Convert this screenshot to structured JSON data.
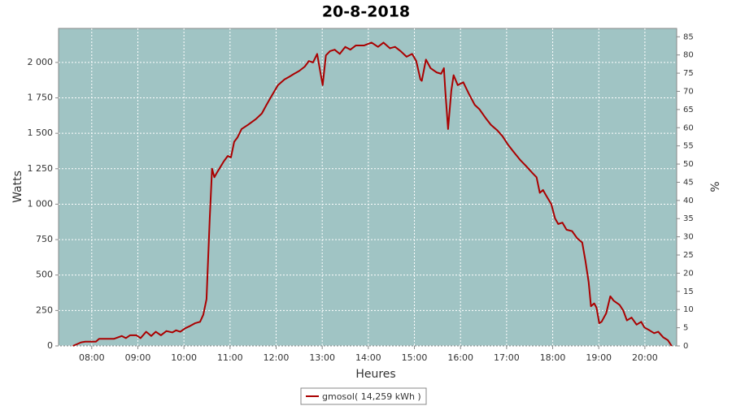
{
  "chart_data": {
    "type": "line",
    "title": "20-8-2018",
    "x_label": "Heures",
    "y_label": "Watts",
    "y2_label": "%",
    "grid": true,
    "legend": "bottom",
    "background": "#a0c4c4",
    "xlim": [
      7.28,
      20.69
    ],
    "xticks": [
      {
        "value": 8,
        "label": "08:00"
      },
      {
        "value": 9,
        "label": "09:00"
      },
      {
        "value": 10,
        "label": "10:00"
      },
      {
        "value": 11,
        "label": "11:00"
      },
      {
        "value": 12,
        "label": "12:00"
      },
      {
        "value": 13,
        "label": "13:00"
      },
      {
        "value": 14,
        "label": "14:00"
      },
      {
        "value": 15,
        "label": "15:00"
      },
      {
        "value": 16,
        "label": "16:00"
      },
      {
        "value": 17,
        "label": "17:00"
      },
      {
        "value": 18,
        "label": "18:00"
      },
      {
        "value": 19,
        "label": "19:00"
      },
      {
        "value": 20,
        "label": "20:00"
      }
    ],
    "ylim": [
      0,
      2240
    ],
    "yticks": [
      0,
      250,
      500,
      750,
      {
        "value": 1000,
        "label": "1 000"
      },
      {
        "value": 1250,
        "label": "1 250"
      },
      {
        "value": 1500,
        "label": "1 500"
      },
      {
        "value": 1750,
        "label": "1 750"
      },
      {
        "value": 2000,
        "label": "2 000"
      }
    ],
    "y2lim": [
      0,
      87.3
    ],
    "y2ticks": [
      0,
      5,
      10,
      15,
      20,
      25,
      30,
      35,
      40,
      45,
      50,
      55,
      60,
      65,
      70,
      75,
      80,
      85
    ],
    "x": [
      7.59,
      7.77,
      7.86,
      8.09,
      8.16,
      8.48,
      8.65,
      8.74,
      8.83,
      8.97,
      9.06,
      9.18,
      9.29,
      9.39,
      9.5,
      9.62,
      9.75,
      9.83,
      9.92,
      10.03,
      10.13,
      10.24,
      10.35,
      10.42,
      10.49,
      10.56,
      10.61,
      10.66,
      10.73,
      10.86,
      10.95,
      11.02,
      11.09,
      11.16,
      11.25,
      11.39,
      11.56,
      11.69,
      11.79,
      11.86,
      11.95,
      12.04,
      12.18,
      12.29,
      12.39,
      12.5,
      12.62,
      12.71,
      12.8,
      12.89,
      12.96,
      13.01,
      13.08,
      13.17,
      13.27,
      13.38,
      13.5,
      13.61,
      13.73,
      13.91,
      14.07,
      14.21,
      14.33,
      14.47,
      14.58,
      14.7,
      14.83,
      14.95,
      15.04,
      15.13,
      15.16,
      15.25,
      15.35,
      15.48,
      15.58,
      15.64,
      15.67,
      15.73,
      15.8,
      15.85,
      15.94,
      16.06,
      16.18,
      16.31,
      16.41,
      16.54,
      16.66,
      16.8,
      16.91,
      17.03,
      17.15,
      17.3,
      17.42,
      17.56,
      17.65,
      17.72,
      17.79,
      17.86,
      17.97,
      18.05,
      18.12,
      18.21,
      18.3,
      18.42,
      18.53,
      18.64,
      18.71,
      18.78,
      18.83,
      18.9,
      18.95,
      19.01,
      19.06,
      19.16,
      19.25,
      19.32,
      19.45,
      19.53,
      19.61,
      19.71,
      19.82,
      19.92,
      19.99,
      20.1,
      20.2,
      20.29,
      20.4,
      20.5,
      20.58
    ],
    "series": [
      {
        "name": "gmosol( 14,259 kWh )",
        "color": "#aa0000",
        "values": [
          0,
          25,
          30,
          30,
          50,
          50,
          70,
          55,
          75,
          75,
          55,
          100,
          70,
          100,
          75,
          105,
          95,
          110,
          100,
          125,
          140,
          160,
          170,
          220,
          330,
          900,
          1250,
          1190,
          1230,
          1300,
          1340,
          1330,
          1440,
          1470,
          1530,
          1560,
          1600,
          1640,
          1700,
          1740,
          1790,
          1840,
          1880,
          1900,
          1920,
          1940,
          1970,
          2010,
          2000,
          2060,
          1930,
          1840,
          2050,
          2080,
          2090,
          2060,
          2110,
          2090,
          2120,
          2120,
          2140,
          2110,
          2140,
          2100,
          2110,
          2080,
          2040,
          2060,
          2010,
          1880,
          1870,
          2020,
          1960,
          1930,
          1920,
          1960,
          1800,
          1530,
          1800,
          1910,
          1840,
          1860,
          1780,
          1700,
          1670,
          1610,
          1560,
          1520,
          1480,
          1420,
          1370,
          1310,
          1270,
          1220,
          1190,
          1080,
          1100,
          1060,
          1000,
          900,
          860,
          870,
          820,
          810,
          760,
          730,
          600,
          450,
          280,
          300,
          270,
          160,
          170,
          230,
          350,
          320,
          290,
          250,
          180,
          200,
          150,
          170,
          130,
          110,
          90,
          100,
          60,
          40,
          0
        ]
      }
    ]
  }
}
